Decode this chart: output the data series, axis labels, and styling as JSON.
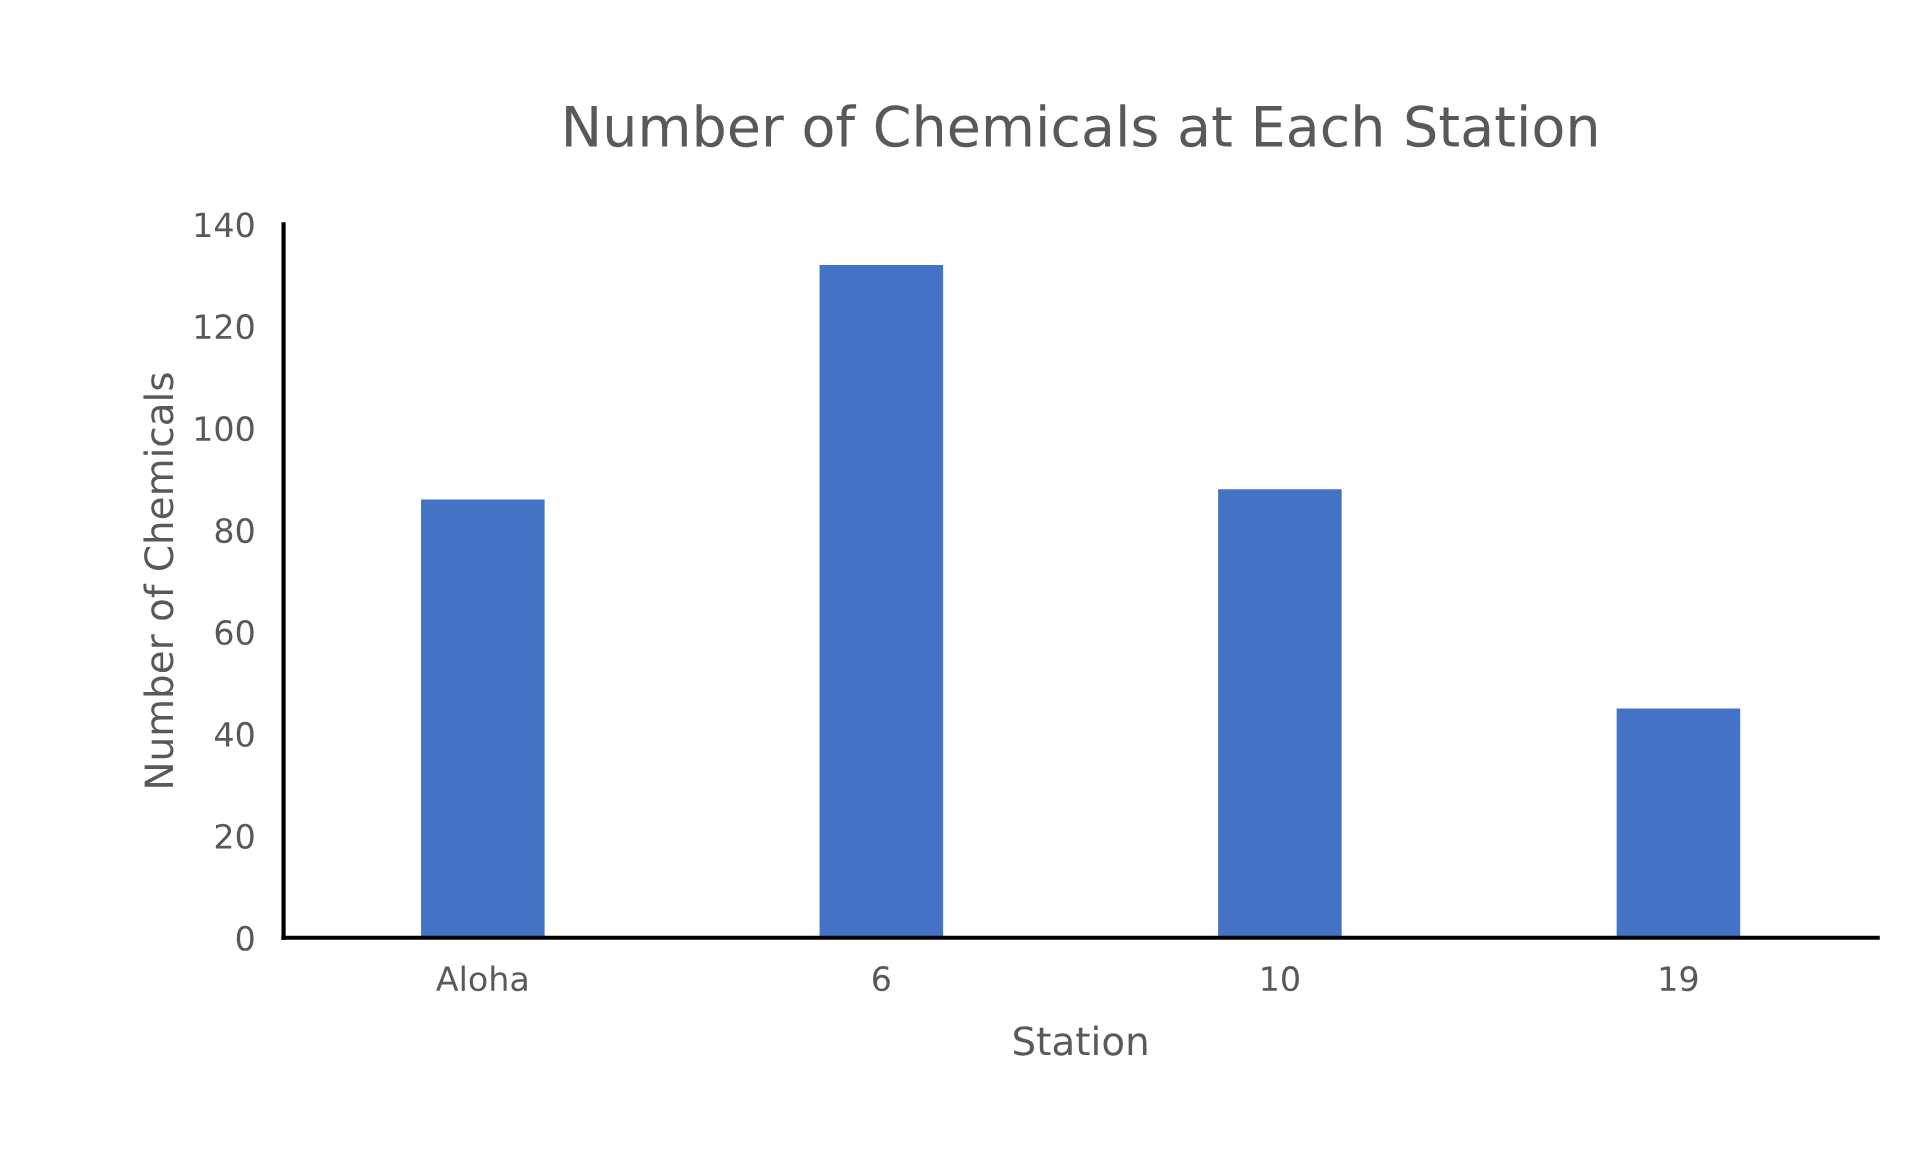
{
  "chart_data": {
    "type": "bar",
    "title": "Number of Chemicals at Each Station",
    "xlabel": "Station",
    "ylabel": "Number of Chemicals",
    "categories": [
      "Aloha",
      "6",
      "10",
      "19"
    ],
    "values": [
      86,
      132,
      88,
      45
    ],
    "color": "#4472c4",
    "ylim": [
      0,
      140
    ],
    "yticks": [
      0,
      20,
      40,
      60,
      80,
      100,
      120,
      140
    ],
    "grid": false
  }
}
